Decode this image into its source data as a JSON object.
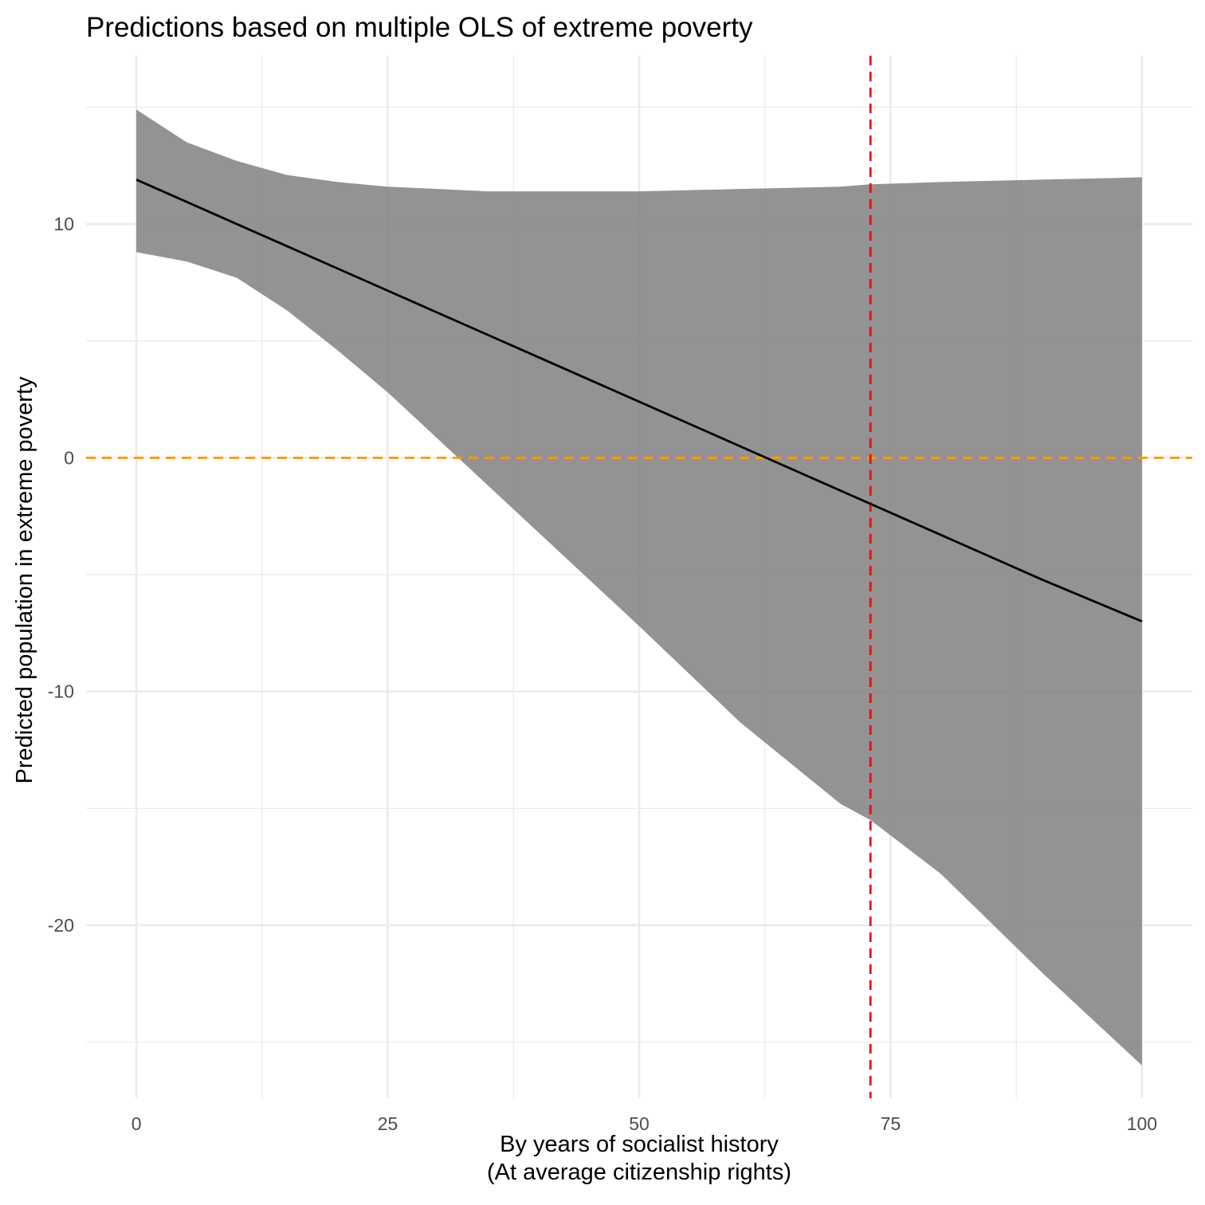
{
  "chart_data": {
    "type": "line",
    "title": "Predictions based on multiple OLS of extreme poverty",
    "xlabel": [
      "By years of socialist history",
      "(At average citizenship rights)"
    ],
    "ylabel": "Predicted population in extreme poverty",
    "xlim": [
      -5,
      105
    ],
    "ylim": [
      -27.4,
      17.2
    ],
    "x_ticks": [
      0,
      25,
      50,
      75,
      100
    ],
    "x_tick_labels": [
      "0",
      "25",
      "50",
      "75",
      "100"
    ],
    "y_ticks": [
      -20,
      -10,
      0,
      10
    ],
    "y_tick_labels": [
      "-20",
      "-10",
      "0",
      "10"
    ],
    "grid": true,
    "legend": "none",
    "series": [
      {
        "x": [
          0,
          10,
          20,
          30,
          40,
          50,
          60,
          70,
          80,
          90,
          100
        ],
        "y": [
          11.9,
          10.0,
          8.1,
          6.2,
          4.3,
          2.4,
          0.5,
          -1.4,
          -3.3,
          -5.2,
          -7.0
        ]
      }
    ],
    "ribbon": {
      "x": [
        0,
        5,
        10,
        15,
        20,
        25,
        30,
        35,
        40,
        50,
        60,
        70,
        73,
        80,
        90,
        100
      ],
      "upper": [
        14.9,
        13.5,
        12.7,
        12.1,
        11.8,
        11.6,
        11.5,
        11.4,
        11.4,
        11.4,
        11.5,
        11.6,
        11.7,
        11.8,
        11.9,
        12.0
      ],
      "lower": [
        8.8,
        8.4,
        7.7,
        6.3,
        4.6,
        2.8,
        0.8,
        -1.2,
        -3.2,
        -7.2,
        -11.3,
        -14.8,
        -15.5,
        -17.8,
        -22.0,
        -26.0
      ]
    },
    "reference_lines": [
      {
        "orientation": "horizontal",
        "value": 0,
        "color": "#ff9900",
        "style": "dashed"
      },
      {
        "orientation": "vertical",
        "value": 73,
        "color": "#ff0000",
        "style": "dashed"
      }
    ],
    "colors": {
      "ribbon": "#808080",
      "line": "#000000",
      "grid": "#ebebeb",
      "background": "#ffffff"
    }
  }
}
